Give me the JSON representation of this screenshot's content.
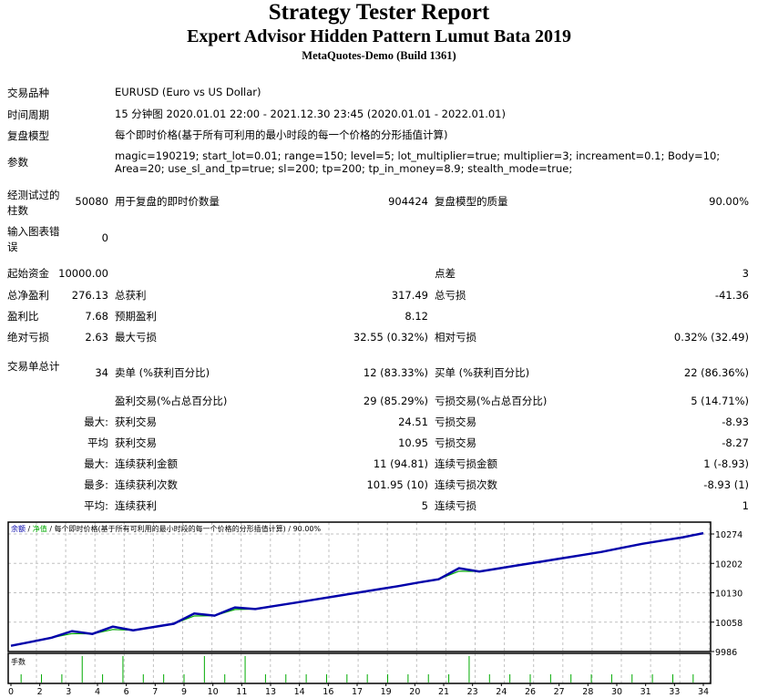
{
  "header": {
    "title": "Strategy Tester Report",
    "subtitle": "Expert Advisor Hidden Pattern Lumut Bata 2019",
    "build": "MetaQuotes-Demo (Build 1361)"
  },
  "info": [
    {
      "label": "交易品种",
      "value": "EURUSD (Euro vs US Dollar)"
    },
    {
      "label": "时间周期",
      "value": "15 分钟图 2020.01.01 22:00 - 2021.12.30 23:45 (2020.01.01 - 2022.01.01)"
    },
    {
      "label": "复盘模型",
      "value": "每个即时价格(基于所有可利用的最小时段的每一个价格的分形插值计算)"
    },
    {
      "label": "参数",
      "value": "magic=190219; start_lot=0.01; range=150; level=5; lot_multiplier=true; multiplier=3; increament=0.1; Body=10; Area=20; use_sl_and_tp=true; sl=200; tp=200; tp_in_money=8.9; stealth_mode=true;"
    }
  ],
  "stats": [
    [
      "经测试过的柱数",
      "50080",
      "用于复盘的即时价数量",
      "904424",
      "复盘模型的质量",
      "90.00%"
    ],
    [
      "输入图表错误",
      "0",
      "",
      "",
      "",
      ""
    ],
    [
      "起始资金",
      "10000.00",
      "",
      "",
      "点差",
      "3"
    ],
    [
      "总净盈利",
      "276.13",
      "总获利",
      "317.49",
      "总亏损",
      "-41.36"
    ],
    [
      "盈利比",
      "7.68",
      "预期盈利",
      "8.12",
      "",
      ""
    ],
    [
      "绝对亏损",
      "2.63",
      "最大亏损",
      "32.55 (0.32%)",
      "相对亏损",
      "0.32% (32.49)"
    ],
    [
      "交易单总计",
      "34",
      "卖单 (%获利百分比)",
      "12 (83.33%)",
      "买单 (%获利百分比)",
      "22 (86.36%)"
    ],
    [
      "",
      "",
      "盈利交易(%占总百分比)",
      "29 (85.29%)",
      "亏损交易(%占总百分比)",
      "5 (14.71%)"
    ],
    [
      "",
      "最大:",
      "获利交易",
      "24.51",
      "亏损交易",
      "-8.93"
    ],
    [
      "",
      "平均",
      "获利交易",
      "10.95",
      "亏损交易",
      "-8.27"
    ],
    [
      "",
      "最大:",
      "连续获利金额",
      "11 (94.81)",
      "连续亏损金额",
      "1 (-8.93)"
    ],
    [
      "",
      "最多:",
      "连续获利次数",
      "101.95 (10)",
      "连续亏损次数",
      "-8.93 (1)"
    ],
    [
      "",
      "平均:",
      "连续获利",
      "5",
      "连续亏损",
      "1"
    ]
  ],
  "chart_data": {
    "type": "line",
    "legend": {
      "balance": "余额",
      "equity": "净值",
      "model": "每个即时价格(基于所有可利用的最小时段的每一个价格的分形插值计算)",
      "quality": "90.00%"
    },
    "colors": {
      "balance": "#0000aa",
      "equity": "#00aa00",
      "volume": "#00aa00",
      "grid": "#c0c0c0"
    },
    "ylim": [
      9986,
      10274
    ],
    "y_ticks": [
      "10274",
      "10202",
      "10130",
      "10058",
      "9986"
    ],
    "x_ticks": [
      "0",
      "2",
      "3",
      "4",
      "6",
      "7",
      "9",
      "10",
      "11",
      "13",
      "14",
      "16",
      "17",
      "19",
      "20",
      "21",
      "23",
      "24",
      "26",
      "27",
      "28",
      "30",
      "31",
      "33",
      "34"
    ],
    "x_range": [
      0,
      34
    ],
    "grid": true,
    "series": [
      {
        "name": "余额",
        "values": [
          10000,
          10010,
          10020,
          10036,
          10029,
          10047,
          10038,
          10046,
          10054,
          10079,
          10074,
          10094,
          10090,
          10098,
          10106,
          10114,
          10122,
          10130,
          10138,
          10146,
          10155,
          10163,
          10190,
          10182,
          10190,
          10198,
          10206,
          10214,
          10222,
          10230,
          10240,
          10250,
          10258,
          10266,
          10276
        ]
      },
      {
        "name": "净值",
        "values": [
          10000,
          10010,
          10020,
          10030,
          10029,
          10040,
          10038,
          10046,
          10054,
          10073,
          10074,
          10089,
          10090,
          10098,
          10106,
          10114,
          10122,
          10130,
          10138,
          10146,
          10155,
          10163,
          10183,
          10182,
          10190,
          10198,
          10206,
          10214,
          10222,
          10230,
          10240,
          10250,
          10258,
          10266,
          10276
        ]
      }
    ],
    "volume": {
      "label": "手数",
      "values": [
        0.01,
        0.01,
        0.01,
        0.03,
        0.01,
        0.03,
        0.01,
        0.01,
        0.01,
        0.03,
        0.01,
        0.03,
        0.01,
        0.01,
        0.01,
        0.01,
        0.01,
        0.01,
        0.01,
        0.01,
        0.01,
        0.01,
        0.03,
        0.01,
        0.01,
        0.01,
        0.01,
        0.01,
        0.01,
        0.01,
        0.01,
        0.01,
        0.01,
        0.01
      ]
    }
  }
}
